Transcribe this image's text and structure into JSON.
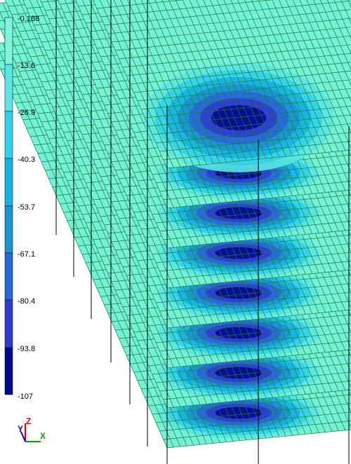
{
  "legend": {
    "labels": [
      "-0.188",
      "-13.6",
      "-26.9",
      "-40.3",
      "-53.7",
      "-67.1",
      "-80.4",
      "-93.8",
      "-107"
    ]
  },
  "axes": {
    "z": "Z",
    "y": "Y",
    "x": "X"
  }
}
